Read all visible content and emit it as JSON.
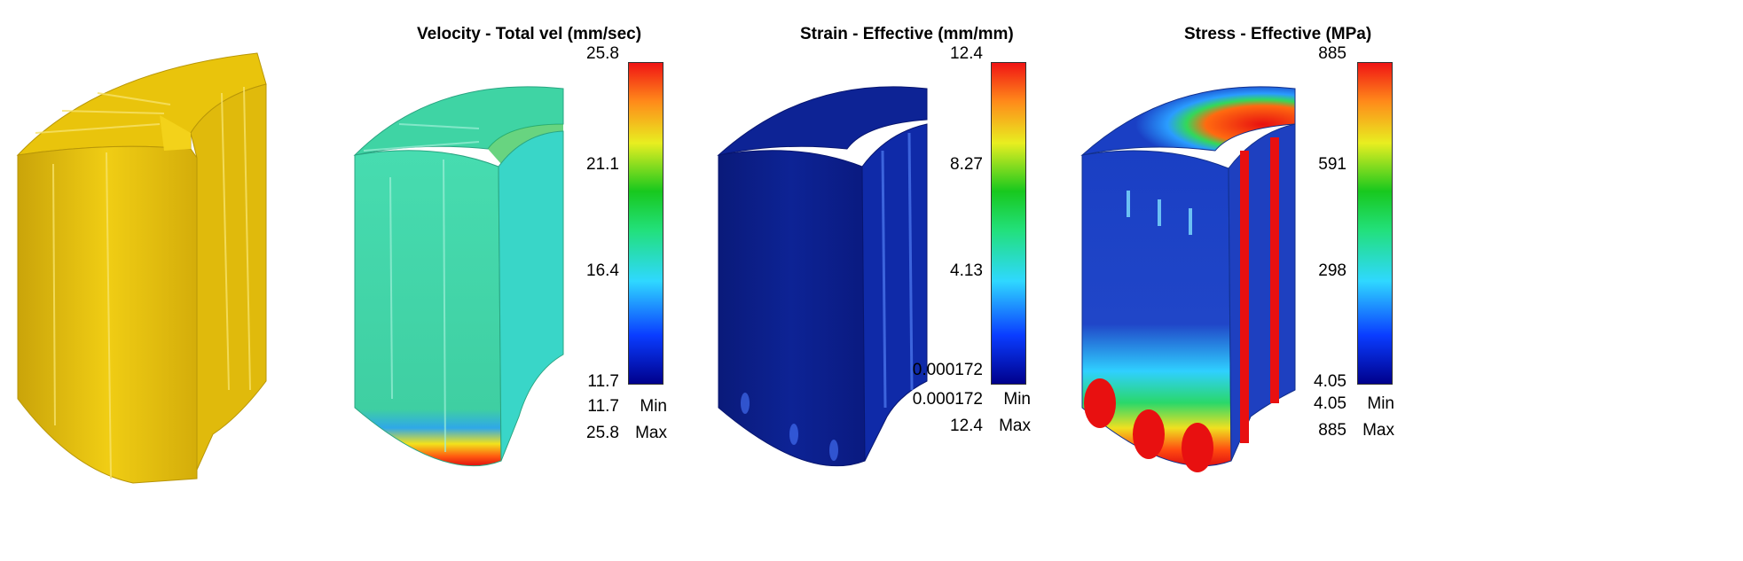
{
  "colors": {
    "part_yellow": "#e8c20a",
    "velocity_base": "#3fd4a4",
    "strain_base": "#0b1e8c",
    "stress_low": "#1e3fb8"
  },
  "panels": [
    {
      "id": "geometry",
      "title": ""
    },
    {
      "id": "velocity",
      "title": "Velocity - Total vel (mm/sec)",
      "ticks": [
        "25.8",
        "21.1",
        "16.4",
        "11.7"
      ],
      "min_value": "11.7",
      "max_value": "25.8",
      "min_label": "Min",
      "max_label": "Max"
    },
    {
      "id": "strain",
      "title": "Strain - Effective (mm/mm)",
      "ticks": [
        "12.4",
        "8.27",
        "4.13",
        "0.000172"
      ],
      "min_value": "0.000172",
      "max_value": "12.4",
      "min_label": "Min",
      "max_label": "Max"
    },
    {
      "id": "stress",
      "title": "Stress - Effective (MPa)",
      "ticks": [
        "885",
        "591",
        "298",
        "4.05"
      ],
      "min_value": "4.05",
      "max_value": "885",
      "min_label": "Min",
      "max_label": "Max"
    }
  ]
}
